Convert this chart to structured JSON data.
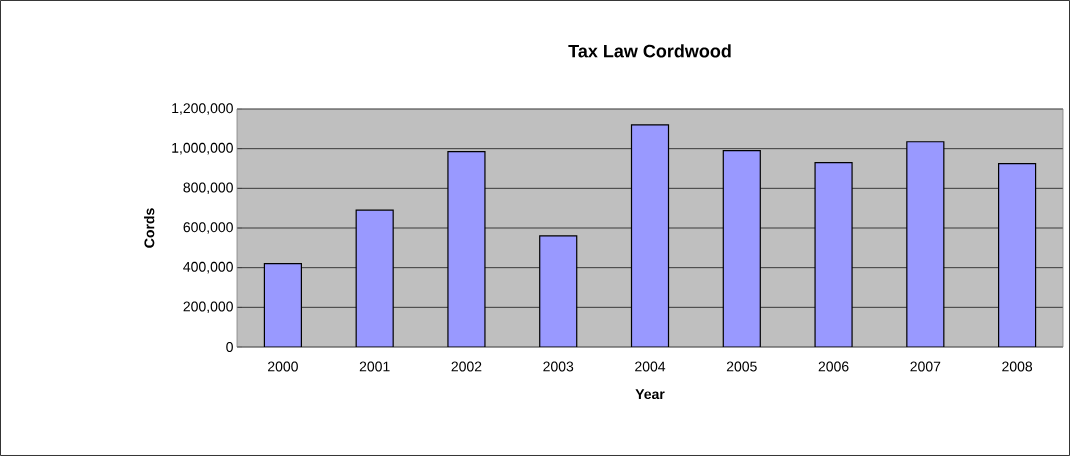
{
  "chart_data": {
    "type": "bar",
    "title": "Tax Law Cordwood",
    "xlabel": "Year",
    "ylabel": "Cords",
    "categories": [
      "2000",
      "2001",
      "2002",
      "2003",
      "2004",
      "2005",
      "2006",
      "2007",
      "2008"
    ],
    "values": [
      420000,
      690000,
      985000,
      560000,
      1120000,
      990000,
      930000,
      1035000,
      925000
    ],
    "color": "#9999ff",
    "ylim": [
      0,
      1200000
    ],
    "yticks": [
      {
        "value": 0,
        "label": "0"
      },
      {
        "value": 200000,
        "label": "200,000"
      },
      {
        "value": 400000,
        "label": "400,000"
      },
      {
        "value": 600000,
        "label": "600,000"
      },
      {
        "value": 800000,
        "label": "800,000"
      },
      {
        "value": 1000000,
        "label": "1,000,000"
      },
      {
        "value": 1200000,
        "label": "1,200,000"
      }
    ],
    "grid": "y"
  }
}
